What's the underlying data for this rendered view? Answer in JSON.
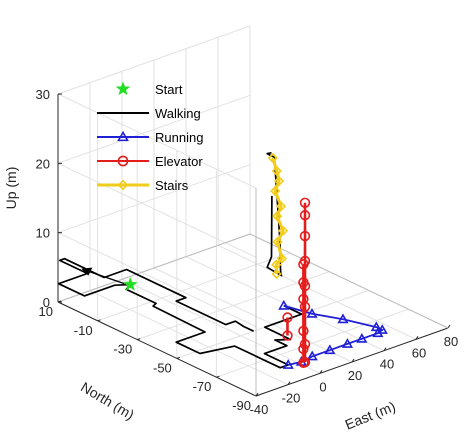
{
  "chart_data": {
    "type": "line",
    "chart_kind": "3d-trajectory",
    "title": "",
    "xlabel": "East (m)",
    "ylabel": "North (m)",
    "zlabel": "Up (m)",
    "xlim": [
      -40,
      80
    ],
    "ylim": [
      -90,
      10
    ],
    "zlim": [
      0,
      30
    ],
    "x_ticks": [
      -40,
      -20,
      0,
      20,
      40,
      60,
      80
    ],
    "y_ticks": [
      10,
      -10,
      -30,
      -50,
      -70,
      -90
    ],
    "z_ticks": [
      0,
      10,
      20,
      30
    ],
    "x_tick_labels": [
      "-40",
      "-20",
      "0",
      "20",
      "40",
      "60",
      "80"
    ],
    "y_tick_labels": [
      "10",
      "-10",
      "-30",
      "-50",
      "-70",
      "-90"
    ],
    "z_tick_labels": [
      "0",
      "10",
      "20",
      "30"
    ],
    "grid": true,
    "legend_position": "top-left",
    "legend": [
      {
        "label": "Start",
        "marker": "pentagram",
        "color": "#22dd22"
      },
      {
        "label": "Walking",
        "marker": "none",
        "color": "#000000"
      },
      {
        "label": "Running",
        "marker": "triangle",
        "color": "#1f1fd6"
      },
      {
        "label": "Elevator",
        "marker": "circle",
        "color": "#e51c1c"
      },
      {
        "label": "Stairs",
        "marker": "diamond",
        "color": "#f2cc1a"
      }
    ],
    "annotation": "direction arrow at start",
    "start_point": {
      "x": -1,
      "y": 5,
      "z": 0
    },
    "series": [
      {
        "name": "Walking",
        "color": "#000000",
        "segments": [
          [
            [
              -1,
              5,
              0
            ],
            [
              -6,
              3,
              0
            ],
            [
              -6,
              -12,
              0
            ],
            [
              -9,
              -13,
              0
            ],
            [
              -10,
              -40,
              0
            ],
            [
              -28,
              -40,
              0
            ],
            [
              -28,
              -52,
              0
            ],
            [
              -10,
              -55,
              0
            ],
            [
              -10,
              -78,
              0
            ],
            [
              -5,
              -78,
              0
            ],
            [
              -5,
              -66,
              0
            ],
            [
              9,
              -66,
              0
            ],
            [
              9,
              -60,
              0
            ],
            [
              15,
              -63,
              0
            ],
            [
              15,
              -50,
              0
            ],
            [
              38,
              -50,
              0
            ],
            [
              38,
              -41,
              0
            ]
          ],
          [
            [
              -1,
              5,
              0
            ],
            [
              -7,
              8,
              0
            ],
            [
              -26,
              8,
              0
            ],
            [
              -26,
              21,
              0
            ],
            [
              -8,
              21,
              0
            ],
            [
              -8,
              35,
              0
            ],
            [
              -5,
              35,
              0
            ],
            [
              -5,
              15,
              0
            ],
            [
              9,
              15,
              0
            ],
            [
              9,
              -15,
              0
            ],
            [
              3,
              -15,
              0
            ],
            [
              3,
              -40,
              0
            ],
            [
              9,
              -40,
              0
            ],
            [
              8,
              -45,
              0
            ],
            [
              8,
              -50,
              0
            ]
          ],
          [
            [
              13,
              -55,
              26
            ],
            [
              14,
              -52,
              25.4
            ],
            [
              21,
              -50,
              24
            ],
            [
              23,
              -50,
              17
            ],
            [
              22,
              -52,
              12
            ],
            [
              21,
              -53,
              9
            ],
            [
              20,
              -54,
              8
            ],
            [
              18,
              -56,
              8
            ],
            [
              14,
              -52,
              9
            ],
            [
              13,
              -55,
              11
            ],
            [
              12,
              -56,
              20
            ]
          ]
        ]
      },
      {
        "name": "Running",
        "color": "#1f1fd6",
        "points": [
          [
            38,
            -41,
            0
          ],
          [
            42,
            -52,
            0
          ],
          [
            49,
            -62,
            0
          ],
          [
            55,
            -74,
            0
          ],
          [
            55,
            -77,
            0
          ],
          [
            51,
            -78,
            0
          ],
          [
            41,
            -78,
            0
          ],
          [
            32,
            -78,
            0
          ],
          [
            21,
            -78,
            0
          ],
          [
            10,
            -78,
            0
          ],
          [
            2,
            -79,
            0
          ],
          [
            -5,
            -78,
            0
          ]
        ]
      },
      {
        "name": "Elevator",
        "color": "#e51c1c",
        "shafts": [
          {
            "x": 2,
            "y": -80,
            "z": [
              0,
              2,
              4.6,
              9.2,
              11.6,
              14.2
            ]
          },
          {
            "x": 3,
            "y": -80,
            "z": [
              0,
              2.6,
              8,
              11,
              14.6,
              18.2,
              21.2,
              23
            ]
          },
          {
            "x": -3,
            "y": -76,
            "z": [
              3.8,
              6.4
            ]
          }
        ]
      },
      {
        "name": "Stairs",
        "color": "#f2cc1a",
        "points": [
          [
            20,
            -50,
            24
          ],
          [
            20,
            -52,
            22.4
          ],
          [
            19,
            -54,
            21.3
          ],
          [
            19,
            -52,
            19.6
          ],
          [
            19,
            -55,
            17.8
          ],
          [
            19,
            -53,
            16.1
          ],
          [
            19,
            -56,
            14.4
          ],
          [
            18,
            -54,
            12.6
          ],
          [
            17,
            -57,
            10.7
          ],
          [
            16,
            -55,
            9.6
          ],
          [
            15,
            -56,
            8.5
          ]
        ]
      }
    ]
  }
}
